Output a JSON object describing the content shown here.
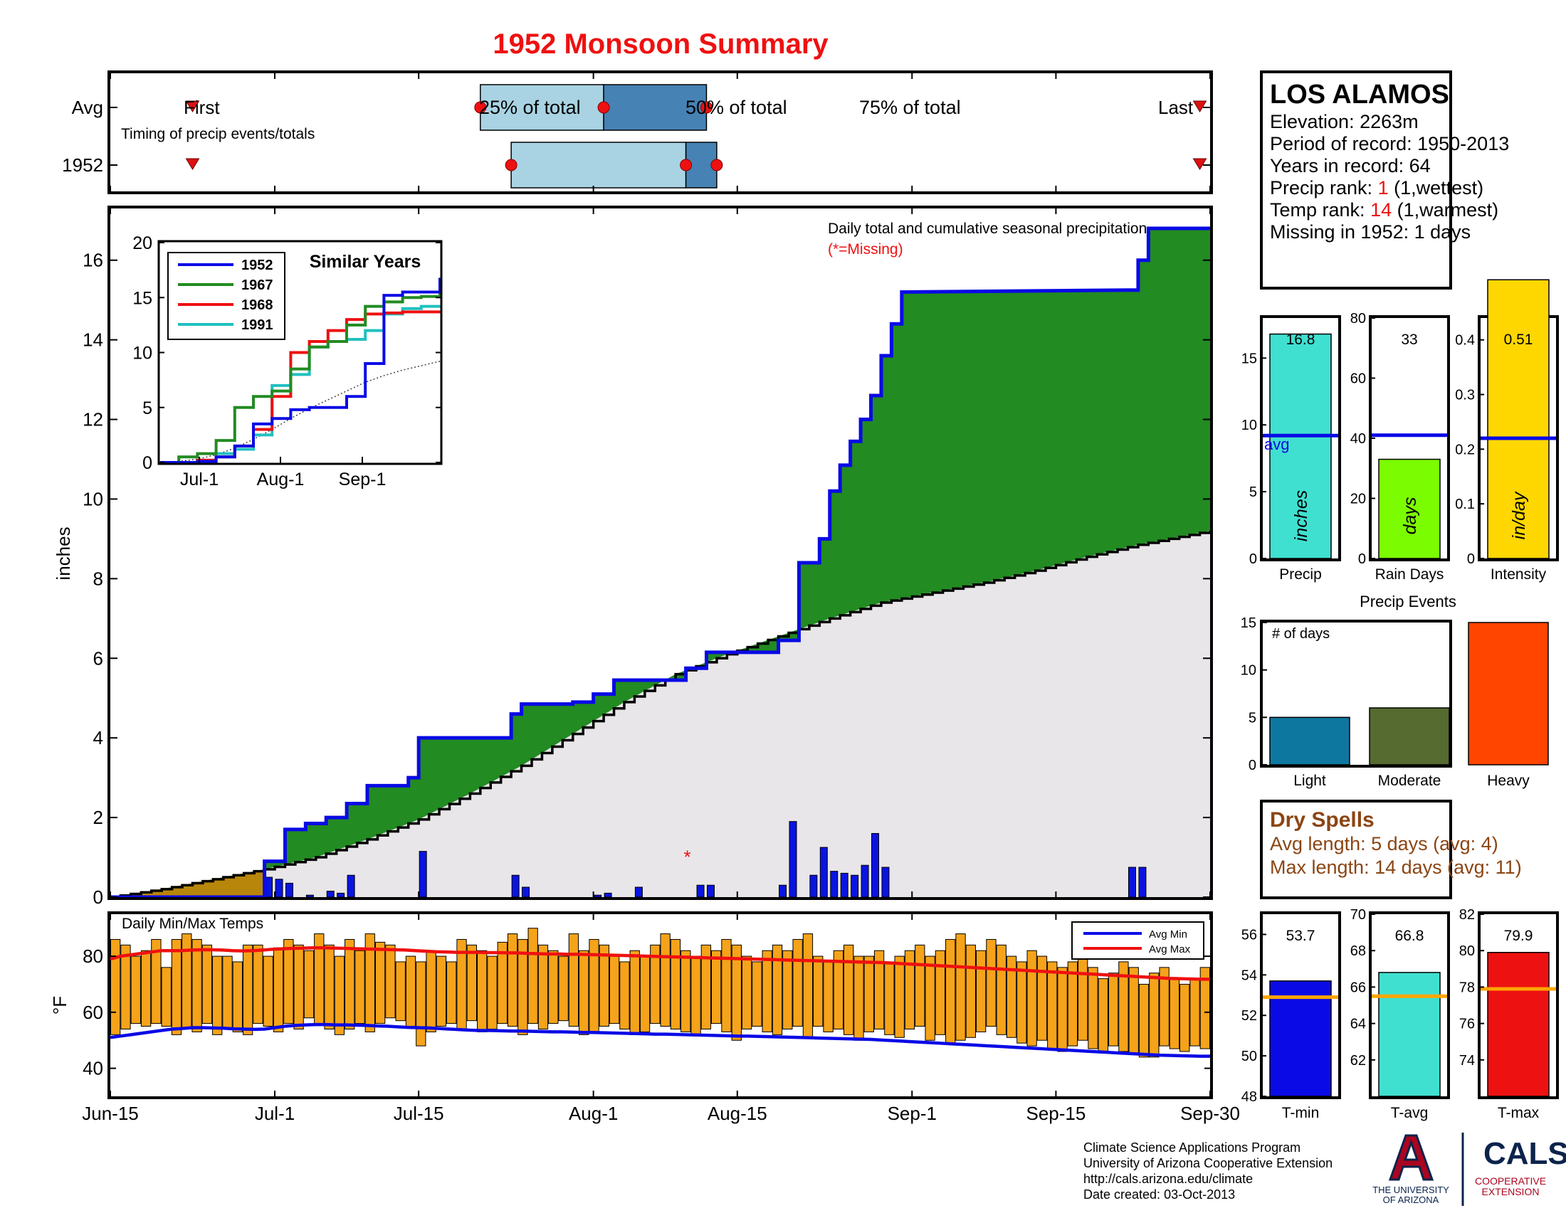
{
  "title": "1952 Monsoon Summary",
  "colors": {
    "title": "#ee1111",
    "blue": "#0a0ae6",
    "green": "#228b22",
    "grey_area": "#e8e6e8",
    "brown": "#b8860b",
    "bar_blue": "#0a14e0",
    "temp_bar": "#f5a31a",
    "light_blue": "#a9d3e3",
    "mid_blue": "#4682b4",
    "red": "#ee1111",
    "orange": "#ffa500"
  },
  "timing": {
    "rows": [
      "Avg",
      "1952"
    ],
    "first_label": "First",
    "last_label": "Last",
    "caption": "Timing of precip events/totals",
    "pct_labels": [
      "25% of total",
      "50% of total",
      "75% of total"
    ],
    "avg": {
      "first": 8,
      "q25": 36,
      "q50": 48,
      "q75": 58,
      "last": 106
    },
    "y1952": {
      "first": 8,
      "q25": 39,
      "q50": 56,
      "q75": 59,
      "last": 106
    }
  },
  "station": {
    "name": "LOS ALAMOS",
    "elevation": "Elevation: 2263m",
    "period": "Period of record: 1950-2013",
    "years": "Years in record: 64",
    "precip_rank_label": "Precip rank: ",
    "precip_rank_value": "1",
    "precip_rank_suffix": " (1,wettest)",
    "temp_rank_label": "Temp rank: ",
    "temp_rank_value": "14",
    "temp_rank_suffix": " (1,warmest)",
    "missing": "Missing in 1952: 1 days"
  },
  "main_chart": {
    "ylabel": "inches",
    "annotation": "Daily total and cumulative seasonal precipitation",
    "missing_note": "(*=Missing)",
    "missing_day": 56,
    "x_ticks": [
      {
        "day": 0,
        "label": "Jun-15"
      },
      {
        "day": 16,
        "label": "Jul-1"
      },
      {
        "day": 30,
        "label": "Jul-15"
      },
      {
        "day": 47,
        "label": "Aug-1"
      },
      {
        "day": 61,
        "label": "Aug-15"
      },
      {
        "day": 78,
        "label": "Sep-1"
      },
      {
        "day": 92,
        "label": "Sep-15"
      },
      {
        "day": 107,
        "label": "Sep-30"
      }
    ]
  },
  "inset": {
    "title": "Similar Years",
    "x_ticks": [
      "Jul-1",
      "Aug-1",
      "Sep-1"
    ],
    "series": [
      {
        "name": "1952",
        "color": "#0a0ae6",
        "values": [
          0,
          0,
          0.1,
          0.5,
          1.5,
          3.5,
          4.0,
          4.8,
          5.0,
          5.0,
          6.0,
          9.0,
          15.2,
          15.5,
          15.5,
          16.8
        ]
      },
      {
        "name": "1967",
        "color": "#228b22",
        "values": [
          0,
          0.5,
          0.8,
          2.0,
          5.0,
          6.0,
          6.5,
          8.5,
          10.5,
          11.0,
          12.5,
          14.2,
          14.6,
          15.0,
          15.1,
          16.0
        ]
      },
      {
        "name": "1968",
        "color": "#ee1111",
        "values": [
          0,
          0,
          0.2,
          0.5,
          1.5,
          3.0,
          6.0,
          10.0,
          11.0,
          12.0,
          13.0,
          13.5,
          13.6,
          13.7,
          13.7,
          13.8
        ]
      },
      {
        "name": "1991",
        "color": "#20c0c0",
        "values": [
          0,
          0,
          0.2,
          0.8,
          1.2,
          2.5,
          7.0,
          8.0,
          10.5,
          11.0,
          11.2,
          12.0,
          13.5,
          14.0,
          14.2,
          14.3
        ]
      },
      {
        "name": "",
        "color": "#444",
        "values": [
          0,
          0.1,
          0.3,
          0.7,
          1.3,
          2.1,
          3.0,
          4.0,
          4.9,
          5.7,
          6.5,
          7.3,
          7.9,
          8.4,
          8.8,
          9.2
        ]
      }
    ]
  },
  "precip_bars": {
    "labels": [
      "Precip",
      "Rain Days",
      "Intensity"
    ],
    "values": [
      "16.8",
      "33",
      "0.51"
    ],
    "units": [
      "inches",
      "days",
      "in/day"
    ],
    "avg_label": "avg",
    "data": [
      {
        "value": 16.8,
        "avg": 9.2,
        "ylim": [
          0,
          18
        ],
        "ticks": [
          0,
          5,
          10,
          15
        ],
        "color": "#40e0d0"
      },
      {
        "value": 33,
        "avg": 41,
        "ylim": [
          0,
          80
        ],
        "ticks": [
          0,
          20,
          40,
          60,
          80
        ],
        "color": "#7cfc00"
      },
      {
        "value": 0.51,
        "avg": 0.22,
        "ylim": [
          0,
          0.44
        ],
        "ticks": [
          0,
          0.1,
          0.2,
          0.3,
          0.4
        ],
        "color": "#ffd700"
      }
    ]
  },
  "precip_events": {
    "title": "Precip Events",
    "ylabel": "# of days",
    "categories": [
      "Light",
      "Moderate",
      "Heavy"
    ],
    "values": [
      5,
      6,
      15
    ],
    "colors": [
      "#0e77a0",
      "#556b2f",
      "#ff4500"
    ],
    "ylim": [
      0,
      15
    ],
    "ticks": [
      0,
      5,
      10,
      15
    ]
  },
  "dry_spells": {
    "title": "Dry Spells",
    "avg_length": "Avg length: 5 days (avg: 4)",
    "max_length": "Max length: 14 days (avg: 11)"
  },
  "temp_chart": {
    "title": "Daily Min/Max Temps",
    "ylabel": "°F",
    "legend_min": "Avg Min",
    "legend_max": "Avg Max",
    "ticks": [
      40,
      60,
      80
    ],
    "ylim": [
      30,
      95
    ]
  },
  "temp_bars": {
    "labels": [
      "T-min",
      "T-avg",
      "T-max"
    ],
    "values": [
      "53.7",
      "66.8",
      "79.9"
    ],
    "data": [
      {
        "value": 53.7,
        "avg": 52.9,
        "ylim": [
          48,
          57
        ],
        "ticks": [
          48,
          50,
          52,
          54,
          56
        ],
        "color": "#0a0ae6"
      },
      {
        "value": 66.8,
        "avg": 65.5,
        "ylim": [
          60,
          70
        ],
        "ticks": [
          62,
          64,
          66,
          68,
          70
        ],
        "color": "#40e0d0"
      },
      {
        "value": 79.9,
        "avg": 77.9,
        "ylim": [
          72,
          82
        ],
        "ticks": [
          74,
          76,
          78,
          80,
          82
        ],
        "color": "#ee1111"
      }
    ]
  },
  "footer": {
    "line1": "Climate Science Applications Program",
    "line2": "University of Arizona Cooperative Extension",
    "line3": "http://cals.arizona.edu/climate",
    "line4": " Date created: 03-Oct-2013",
    "ua_line1": "THE UNIVERSITY",
    "ua_line2": "OF ARIZONA",
    "cals": "CALS",
    "coop1": "COOPERATIVE",
    "coop2": "EXTENSION"
  },
  "chart_data": [
    {
      "type": "area",
      "title": "Daily total and cumulative seasonal precipitation",
      "ylabel": "inches",
      "ylim": [
        0,
        17.3
      ],
      "x_unit": "days since Jun-15",
      "cumulative_1952": [
        [
          0,
          0
        ],
        [
          15,
          0
        ],
        [
          15,
          0.9
        ],
        [
          17,
          0.9
        ],
        [
          17,
          1.7
        ],
        [
          19,
          1.7
        ],
        [
          19,
          1.85
        ],
        [
          21,
          1.85
        ],
        [
          21,
          2.0
        ],
        [
          23,
          2.0
        ],
        [
          23,
          2.35
        ],
        [
          25,
          2.35
        ],
        [
          25,
          2.8
        ],
        [
          29,
          2.8
        ],
        [
          29,
          3.0
        ],
        [
          30,
          3.0
        ],
        [
          30,
          4.0
        ],
        [
          39,
          4.0
        ],
        [
          39,
          4.6
        ],
        [
          40,
          4.6
        ],
        [
          40,
          4.85
        ],
        [
          45,
          4.85
        ],
        [
          45,
          4.9
        ],
        [
          47,
          4.9
        ],
        [
          47,
          5.1
        ],
        [
          49,
          5.1
        ],
        [
          49,
          5.45
        ],
        [
          56,
          5.45
        ],
        [
          56,
          5.75
        ],
        [
          58,
          5.75
        ],
        [
          58,
          6.15
        ],
        [
          65,
          6.15
        ],
        [
          65,
          6.45
        ],
        [
          67,
          6.45
        ],
        [
          67,
          8.4
        ],
        [
          69,
          8.4
        ],
        [
          69,
          9.0
        ],
        [
          70,
          9.0
        ],
        [
          70,
          10.2
        ],
        [
          71,
          10.2
        ],
        [
          71,
          10.85
        ],
        [
          72,
          10.85
        ],
        [
          72,
          11.45
        ],
        [
          73,
          11.45
        ],
        [
          73,
          12.0
        ],
        [
          74,
          12.0
        ],
        [
          74,
          12.6
        ],
        [
          75,
          12.6
        ],
        [
          75,
          13.6
        ],
        [
          76,
          13.6
        ],
        [
          76,
          14.4
        ],
        [
          77,
          14.4
        ],
        [
          77,
          15.2
        ],
        [
          99,
          15.25
        ],
        [
          100,
          15.25
        ],
        [
          100,
          16.0
        ],
        [
          101,
          16.0
        ],
        [
          101,
          16.8
        ],
        [
          107,
          16.8
        ]
      ],
      "avg_cumulative": [
        [
          0,
          0
        ],
        [
          5,
          0.2
        ],
        [
          10,
          0.45
        ],
        [
          15,
          0.7
        ],
        [
          20,
          1.0
        ],
        [
          25,
          1.45
        ],
        [
          30,
          1.95
        ],
        [
          35,
          2.6
        ],
        [
          40,
          3.3
        ],
        [
          45,
          4.1
        ],
        [
          50,
          4.9
        ],
        [
          55,
          5.6
        ],
        [
          60,
          6.1
        ],
        [
          65,
          6.55
        ],
        [
          70,
          7.0
        ],
        [
          75,
          7.4
        ],
        [
          80,
          7.65
        ],
        [
          85,
          7.9
        ],
        [
          90,
          8.2
        ],
        [
          95,
          8.55
        ],
        [
          100,
          8.85
        ],
        [
          107,
          9.2
        ]
      ],
      "daily_bars": [
        [
          15,
          0.5
        ],
        [
          16,
          0.45
        ],
        [
          17,
          0.35
        ],
        [
          19,
          0.05
        ],
        [
          21,
          0.15
        ],
        [
          22,
          0.1
        ],
        [
          23,
          0.55
        ],
        [
          30,
          1.15
        ],
        [
          39,
          0.55
        ],
        [
          40,
          0.25
        ],
        [
          47,
          0.05
        ],
        [
          48,
          0.1
        ],
        [
          51,
          0.25
        ],
        [
          57,
          0.3
        ],
        [
          58,
          0.3
        ],
        [
          65,
          0.3
        ],
        [
          66,
          1.9
        ],
        [
          68,
          0.55
        ],
        [
          69,
          1.25
        ],
        [
          70,
          0.65
        ],
        [
          71,
          0.6
        ],
        [
          72,
          0.55
        ],
        [
          73,
          0.8
        ],
        [
          74,
          1.6
        ],
        [
          75,
          0.75
        ],
        [
          99,
          0.75
        ],
        [
          100,
          0.75
        ]
      ]
    },
    {
      "type": "bar",
      "title": "Daily Min/Max Temps",
      "ylabel": "°F",
      "ylim": [
        30,
        95
      ],
      "x_unit": "days since Jun-15",
      "tmin": [
        52,
        54,
        56,
        55,
        56,
        55,
        52,
        54,
        53,
        56,
        52,
        54,
        53,
        52,
        56,
        55,
        53,
        56,
        54,
        58,
        56,
        54,
        52,
        54,
        56,
        53,
        56,
        58,
        57,
        55,
        48,
        53,
        55,
        56,
        54,
        57,
        53,
        54,
        56,
        55,
        52,
        56,
        54,
        56,
        57,
        55,
        52,
        53,
        55,
        56,
        54,
        52,
        53,
        56,
        55,
        54,
        53,
        52,
        54,
        56,
        53,
        50,
        54,
        55,
        53,
        52,
        54,
        55,
        51,
        55,
        53,
        54,
        52,
        50,
        53,
        54,
        52,
        51,
        54,
        55,
        50,
        52,
        49,
        50,
        51,
        53,
        55,
        52,
        51,
        49,
        48,
        50,
        47,
        46,
        48,
        50,
        47,
        46,
        48,
        46,
        45,
        44,
        44,
        48,
        47,
        46,
        48,
        47
      ],
      "tmax": [
        86,
        84,
        80,
        82,
        86,
        76,
        86,
        88,
        86,
        84,
        80,
        80,
        78,
        84,
        84,
        80,
        83,
        86,
        84,
        82,
        88,
        84,
        80,
        86,
        82,
        88,
        85,
        84,
        78,
        80,
        78,
        82,
        80,
        78,
        86,
        84,
        82,
        80,
        85,
        88,
        86,
        90,
        84,
        82,
        80,
        88,
        82,
        86,
        84,
        80,
        78,
        82,
        80,
        84,
        88,
        86,
        82,
        80,
        84,
        82,
        86,
        84,
        80,
        78,
        82,
        84,
        82,
        86,
        88,
        80,
        78,
        82,
        84,
        80,
        80,
        82,
        78,
        80,
        82,
        84,
        80,
        82,
        86,
        88,
        84,
        82,
        86,
        84,
        80,
        78,
        82,
        80,
        78,
        76,
        78,
        80,
        76,
        72,
        74,
        78,
        76,
        70,
        74,
        76,
        72,
        70,
        72,
        76
      ],
      "avg_min": [
        51,
        51.5,
        52,
        52.5,
        53,
        53.5,
        54,
        54.2,
        54.5,
        54.5,
        54.4,
        54.3,
        54.1,
        54,
        53.9,
        54,
        54.5,
        55,
        55.3,
        55.5,
        55.6,
        55.6,
        55.5,
        55.5,
        55.4,
        55.3,
        55.1,
        55,
        54.8,
        54.6,
        54.5,
        54.4,
        54.2,
        54,
        53.8,
        53.6,
        53.5,
        53.5,
        53.4,
        53.3,
        53.3,
        53.2,
        53.1,
        53,
        53,
        52.9,
        52.8,
        52.8,
        52.7,
        52.6,
        52.5,
        52.4,
        52.3,
        52.2,
        52.2,
        52.1,
        52,
        51.9,
        51.8,
        51.7,
        51.6,
        51.5,
        51.5,
        51.4,
        51.3,
        51.2,
        51.1,
        51,
        50.9,
        50.8,
        50.7,
        50.6,
        50.5,
        50.4,
        50.3,
        50.1,
        49.9,
        49.7,
        49.5,
        49.3,
        49.1,
        48.9,
        48.7,
        48.5,
        48.3,
        48.1,
        47.9,
        47.7,
        47.5,
        47.3,
        47.1,
        46.9,
        46.7,
        46.5,
        46.3,
        46.1,
        45.9,
        45.7,
        45.5,
        45.3,
        45.1,
        44.9,
        44.7,
        44.6,
        44.5,
        44.4,
        44.3,
        44.3
      ],
      "avg_max": [
        79,
        80,
        80.5,
        81,
        81.5,
        82,
        82,
        82,
        82.2,
        82.3,
        82.3,
        82.2,
        82,
        81.9,
        82,
        82.2,
        82.5,
        82.7,
        82.8,
        82.9,
        83,
        83,
        82.9,
        82.8,
        82.7,
        82.6,
        82.5,
        82.4,
        82.3,
        82.2,
        82,
        81.8,
        81.6,
        81.5,
        81.4,
        81.4,
        81.4,
        81.3,
        81.3,
        81.2,
        81.2,
        81,
        80.9,
        80.8,
        80.8,
        80.7,
        80.7,
        80.6,
        80.5,
        80.4,
        80.3,
        80.2,
        80.1,
        80,
        79.9,
        79.8,
        79.7,
        79.6,
        79.5,
        79.4,
        79.3,
        79.2,
        79.1,
        79,
        78.9,
        78.8,
        78.7,
        78.6,
        78.5,
        78.4,
        78.3,
        78.2,
        78.1,
        78,
        77.9,
        77.8,
        77.7,
        77.5,
        77.3,
        77.1,
        76.9,
        76.7,
        76.5,
        76.3,
        76.1,
        75.9,
        75.7,
        75.5,
        75.3,
        75.1,
        74.9,
        74.7,
        74.5,
        74.3,
        74.1,
        73.9,
        73.7,
        73.5,
        73.3,
        73.1,
        72.9,
        72.7,
        72.5,
        72.3,
        72.1,
        72,
        71.9,
        71.8,
        71.8
      ]
    },
    {
      "type": "line",
      "title": "Similar Years",
      "x_ticks": [
        "Jul-1",
        "Aug-1",
        "Sep-1"
      ],
      "ylim": [
        0,
        20
      ],
      "series_names": [
        "1952",
        "1967",
        "1968",
        "1991"
      ]
    },
    {
      "type": "bar",
      "categories": [
        "Precip",
        "Rain Days",
        "Intensity"
      ],
      "values": [
        16.8,
        33,
        0.51
      ],
      "averages": [
        9.2,
        41,
        0.22
      ]
    },
    {
      "type": "bar",
      "title": "Precip Events",
      "categories": [
        "Light",
        "Moderate",
        "Heavy"
      ],
      "values": [
        5,
        6,
        15
      ],
      "ylabel": "# of days"
    },
    {
      "type": "bar",
      "categories": [
        "T-min",
        "T-avg",
        "T-max"
      ],
      "values": [
        53.7,
        66.8,
        79.9
      ],
      "averages": [
        52.9,
        65.5,
        77.9
      ]
    }
  ]
}
